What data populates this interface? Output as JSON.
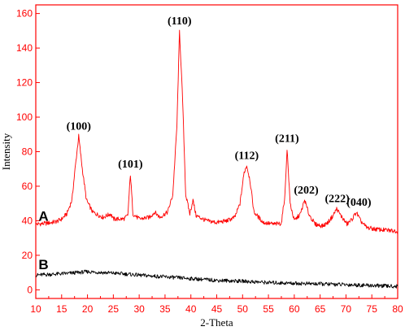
{
  "chart_data": {
    "type": "line",
    "xlabel": "2-Theta",
    "ylabel": "Intensity",
    "xlim": [
      10,
      80
    ],
    "ylim": [
      -5,
      165
    ],
    "xticks": [
      10,
      15,
      20,
      25,
      30,
      35,
      40,
      45,
      50,
      55,
      60,
      65,
      70,
      75,
      80
    ],
    "yticks": [
      0,
      20,
      40,
      60,
      80,
      100,
      120,
      140,
      160
    ],
    "axis_color": "#ff0000",
    "grid": false,
    "series": [
      {
        "name": "A",
        "color": "#ff0000",
        "points": [
          [
            10,
            38
          ],
          [
            12,
            38.5
          ],
          [
            14,
            39.5
          ],
          [
            15,
            41
          ],
          [
            16,
            44
          ],
          [
            17,
            52
          ],
          [
            17.6,
            70
          ],
          [
            18.3,
            89
          ],
          [
            19,
            70
          ],
          [
            19.8,
            52
          ],
          [
            21,
            45
          ],
          [
            23,
            42
          ],
          [
            24.5,
            44
          ],
          [
            25,
            41
          ],
          [
            27,
            41
          ],
          [
            27.8,
            43
          ],
          [
            28.3,
            67
          ],
          [
            28.8,
            44
          ],
          [
            30,
            41
          ],
          [
            32,
            42
          ],
          [
            33,
            45
          ],
          [
            34,
            42
          ],
          [
            35.5,
            45
          ],
          [
            36.5,
            55
          ],
          [
            37.3,
            95
          ],
          [
            37.8,
            150
          ],
          [
            38.4,
            110
          ],
          [
            39,
            55
          ],
          [
            39.8,
            44
          ],
          [
            40.4,
            52
          ],
          [
            41,
            43
          ],
          [
            43,
            40
          ],
          [
            45,
            39
          ],
          [
            47,
            40
          ],
          [
            48.5,
            42
          ],
          [
            49.5,
            50
          ],
          [
            50.3,
            68
          ],
          [
            50.8,
            72
          ],
          [
            51.4,
            64
          ],
          [
            52.2,
            45
          ],
          [
            54,
            39
          ],
          [
            56,
            38
          ],
          [
            57.5,
            38.5
          ],
          [
            58.2,
            55
          ],
          [
            58.6,
            82
          ],
          [
            59.2,
            50
          ],
          [
            60,
            40
          ],
          [
            61.2,
            44
          ],
          [
            62,
            52
          ],
          [
            62.8,
            44
          ],
          [
            64,
            38
          ],
          [
            65.5,
            37
          ],
          [
            66.5,
            39
          ],
          [
            67.5,
            43
          ],
          [
            68.2,
            47
          ],
          [
            69,
            43
          ],
          [
            70.2,
            38
          ],
          [
            71.2,
            41
          ],
          [
            72,
            45
          ],
          [
            72.8,
            40
          ],
          [
            74,
            36
          ],
          [
            76,
            35
          ],
          [
            78,
            34.5
          ],
          [
            80,
            34
          ]
        ]
      },
      {
        "name": "B",
        "color": "#000000",
        "points": [
          [
            10,
            8.5
          ],
          [
            13,
            9
          ],
          [
            16,
            9.5
          ],
          [
            18,
            10
          ],
          [
            20,
            10.5
          ],
          [
            23,
            10
          ],
          [
            26,
            9.5
          ],
          [
            30,
            8.5
          ],
          [
            35,
            7.5
          ],
          [
            40,
            6.5
          ],
          [
            45,
            5.5
          ],
          [
            50,
            5
          ],
          [
            55,
            4.2
          ],
          [
            60,
            3.8
          ],
          [
            65,
            3.4
          ],
          [
            70,
            3
          ],
          [
            75,
            2.5
          ],
          [
            80,
            2
          ]
        ]
      }
    ],
    "peak_labels": [
      {
        "text": "(100)",
        "x": 18.3,
        "y": 89
      },
      {
        "text": "(101)",
        "x": 28.3,
        "y": 67
      },
      {
        "text": "(110)",
        "x": 37.8,
        "y": 150
      },
      {
        "text": "(112)",
        "x": 50.8,
        "y": 72
      },
      {
        "text": "(211)",
        "x": 58.6,
        "y": 82
      },
      {
        "text": "(202)",
        "x": 62.3,
        "y": 52
      },
      {
        "text": "(222)",
        "x": 68.3,
        "y": 47
      },
      {
        "text": "(040)",
        "x": 72.5,
        "y": 45
      }
    ],
    "series_labels": [
      {
        "text": "A",
        "x": 11.5,
        "y": 40
      },
      {
        "text": "B",
        "x": 11.5,
        "y": 12
      }
    ]
  }
}
